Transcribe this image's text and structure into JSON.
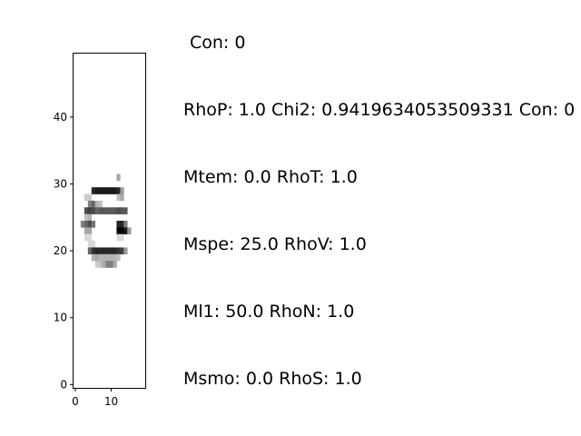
{
  "figure": {
    "title": "Con: 0",
    "text_lines": [
      "RhoP: 1.0 Chi2: 0.9419634053509331 Con: 0",
      "Mtem: 0.0 RhoT: 1.0",
      "Mspe: 25.0 RhoV: 1.0",
      "Ml1: 50.0 RhoN: 1.0",
      "Msmo: 0.0 RhoS: 1.0"
    ]
  },
  "chart_data": {
    "type": "heatmap",
    "colormap": "gray_r",
    "grid": false,
    "xlim": [
      -0.5,
      19.5
    ],
    "ylim": [
      -0.5,
      49.5
    ],
    "x_ticks": [
      0,
      10
    ],
    "y_ticks": [
      0,
      10,
      20,
      30,
      40
    ],
    "x_tick_labels": [
      "0",
      "10"
    ],
    "y_tick_labels": [
      "0",
      "10",
      "20",
      "30",
      "40"
    ],
    "cells": [
      {
        "x": 12,
        "y": 31,
        "v": 0.35
      },
      {
        "x": 5,
        "y": 29,
        "v": 0.85
      },
      {
        "x": 6,
        "y": 29,
        "v": 0.9
      },
      {
        "x": 7,
        "y": 29,
        "v": 0.9
      },
      {
        "x": 8,
        "y": 29,
        "v": 0.9
      },
      {
        "x": 9,
        "y": 29,
        "v": 0.9
      },
      {
        "x": 10,
        "y": 29,
        "v": 0.9
      },
      {
        "x": 11,
        "y": 29,
        "v": 0.9
      },
      {
        "x": 12,
        "y": 29,
        "v": 0.85
      },
      {
        "x": 13,
        "y": 29,
        "v": 0.4
      },
      {
        "x": 3,
        "y": 28,
        "v": 0.2
      },
      {
        "x": 4,
        "y": 28,
        "v": 0.2
      },
      {
        "x": 12,
        "y": 28,
        "v": 0.25
      },
      {
        "x": 13,
        "y": 28,
        "v": 0.35
      },
      {
        "x": 4,
        "y": 27,
        "v": 0.5
      },
      {
        "x": 5,
        "y": 27,
        "v": 0.6
      },
      {
        "x": 6,
        "y": 27,
        "v": 0.3
      },
      {
        "x": 7,
        "y": 27,
        "v": 0.25
      },
      {
        "x": 3,
        "y": 26,
        "v": 0.7
      },
      {
        "x": 4,
        "y": 26,
        "v": 0.75
      },
      {
        "x": 5,
        "y": 26,
        "v": 0.7
      },
      {
        "x": 6,
        "y": 26,
        "v": 0.6
      },
      {
        "x": 7,
        "y": 26,
        "v": 0.65
      },
      {
        "x": 8,
        "y": 26,
        "v": 0.65
      },
      {
        "x": 9,
        "y": 26,
        "v": 0.65
      },
      {
        "x": 10,
        "y": 26,
        "v": 0.65
      },
      {
        "x": 11,
        "y": 26,
        "v": 0.65
      },
      {
        "x": 12,
        "y": 26,
        "v": 0.7
      },
      {
        "x": 13,
        "y": 26,
        "v": 0.65
      },
      {
        "x": 14,
        "y": 26,
        "v": 0.65
      },
      {
        "x": 3,
        "y": 25,
        "v": 0.25
      },
      {
        "x": 4,
        "y": 25,
        "v": 0.3
      },
      {
        "x": 2,
        "y": 24,
        "v": 0.5
      },
      {
        "x": 3,
        "y": 24,
        "v": 0.6
      },
      {
        "x": 4,
        "y": 24,
        "v": 0.7
      },
      {
        "x": 5,
        "y": 24,
        "v": 0.55
      },
      {
        "x": 12,
        "y": 24,
        "v": 0.85
      },
      {
        "x": 13,
        "y": 24,
        "v": 0.85
      },
      {
        "x": 14,
        "y": 24,
        "v": 0.5
      },
      {
        "x": 3,
        "y": 23,
        "v": 0.35
      },
      {
        "x": 4,
        "y": 23,
        "v": 0.35
      },
      {
        "x": 12,
        "y": 23,
        "v": 1.0
      },
      {
        "x": 13,
        "y": 23,
        "v": 1.0
      },
      {
        "x": 14,
        "y": 23,
        "v": 0.9
      },
      {
        "x": 15,
        "y": 23,
        "v": 0.4
      },
      {
        "x": 3,
        "y": 22,
        "v": 0.15
      },
      {
        "x": 4,
        "y": 22,
        "v": 0.15
      },
      {
        "x": 12,
        "y": 22,
        "v": 0.15
      },
      {
        "x": 13,
        "y": 22,
        "v": 0.15
      },
      {
        "x": 4,
        "y": 21,
        "v": 0.15
      },
      {
        "x": 5,
        "y": 21,
        "v": 0.15
      },
      {
        "x": 4,
        "y": 20,
        "v": 0.6
      },
      {
        "x": 5,
        "y": 20,
        "v": 0.8
      },
      {
        "x": 6,
        "y": 20,
        "v": 0.85
      },
      {
        "x": 7,
        "y": 20,
        "v": 0.85
      },
      {
        "x": 8,
        "y": 20,
        "v": 0.85
      },
      {
        "x": 9,
        "y": 20,
        "v": 0.85
      },
      {
        "x": 10,
        "y": 20,
        "v": 0.85
      },
      {
        "x": 11,
        "y": 20,
        "v": 0.85
      },
      {
        "x": 12,
        "y": 20,
        "v": 0.8
      },
      {
        "x": 13,
        "y": 20,
        "v": 0.75
      },
      {
        "x": 14,
        "y": 20,
        "v": 0.4
      },
      {
        "x": 5,
        "y": 19,
        "v": 0.3
      },
      {
        "x": 6,
        "y": 19,
        "v": 0.35
      },
      {
        "x": 7,
        "y": 19,
        "v": 0.3
      },
      {
        "x": 8,
        "y": 19,
        "v": 0.3
      },
      {
        "x": 9,
        "y": 19,
        "v": 0.3
      },
      {
        "x": 10,
        "y": 19,
        "v": 0.3
      },
      {
        "x": 11,
        "y": 19,
        "v": 0.3
      },
      {
        "x": 12,
        "y": 19,
        "v": 0.25
      },
      {
        "x": 6,
        "y": 18,
        "v": 0.2
      },
      {
        "x": 7,
        "y": 18,
        "v": 0.25
      },
      {
        "x": 8,
        "y": 18,
        "v": 0.35
      },
      {
        "x": 9,
        "y": 18,
        "v": 0.5
      },
      {
        "x": 10,
        "y": 18,
        "v": 0.5
      },
      {
        "x": 11,
        "y": 18,
        "v": 0.35
      }
    ]
  }
}
